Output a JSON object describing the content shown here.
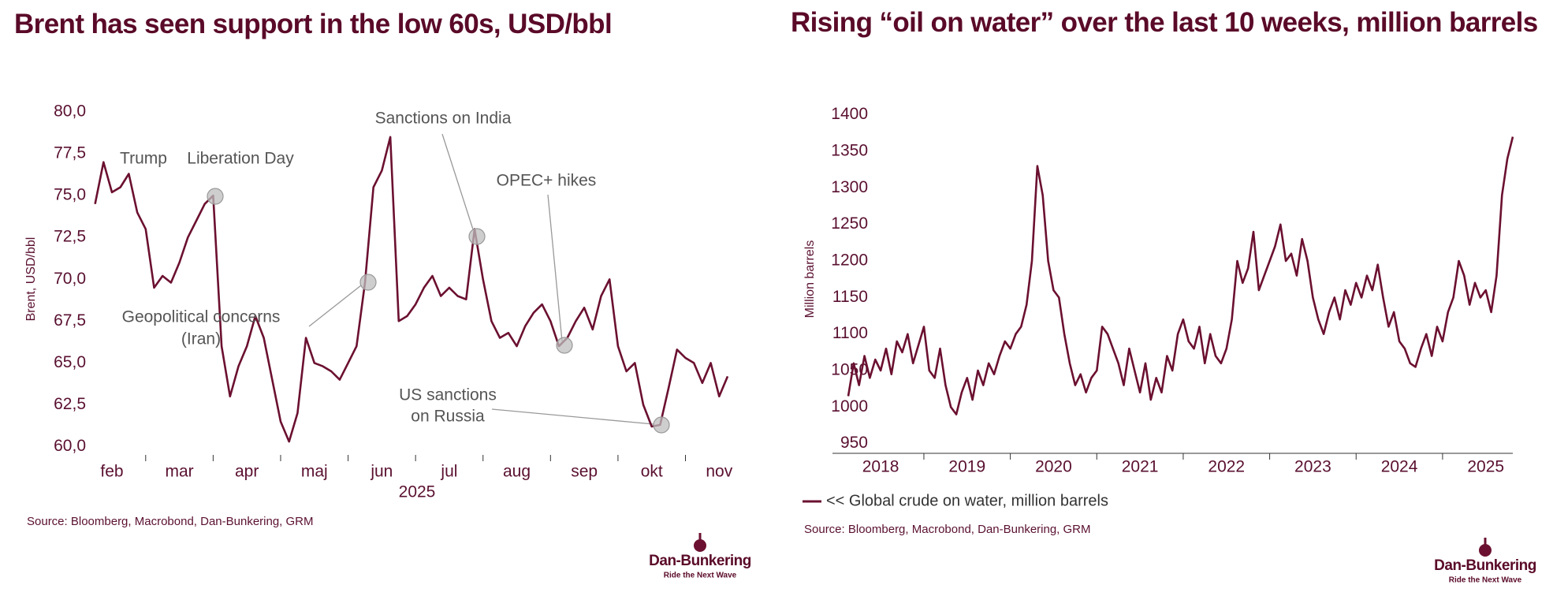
{
  "chart_data": [
    {
      "type": "line",
      "title": "Brent has seen support in the low 60s, USD/bbl",
      "ylabel": "Brent, USD/bbl",
      "xlabel": "2025",
      "categories": [
        null,
        null,
        "feb",
        null,
        null,
        null,
        null,
        null,
        null,
        null,
        "mar",
        null,
        null,
        null,
        null,
        null,
        null,
        null,
        "apr",
        null,
        null,
        null,
        null,
        null,
        null,
        null,
        "maj",
        null,
        null,
        null,
        null,
        null,
        null,
        null,
        "jun",
        null,
        null,
        null,
        null,
        null,
        null,
        null,
        "jul",
        null,
        null,
        null,
        null,
        null,
        null,
        null,
        "aug",
        null,
        null,
        null,
        null,
        null,
        null,
        null,
        "sep",
        null,
        null,
        null,
        null,
        null,
        null,
        null,
        "okt",
        null,
        null,
        null,
        null,
        null,
        null,
        null,
        "nov",
        null
      ],
      "series": [
        {
          "name": "Brent",
          "color": "#6b1030",
          "values": [
            74.5,
            77.0,
            75.2,
            75.5,
            76.3,
            74.0,
            73.0,
            69.5,
            70.2,
            69.8,
            71.0,
            72.5,
            73.5,
            74.5,
            75.0,
            66.0,
            63.0,
            64.8,
            66.0,
            67.8,
            66.5,
            64.0,
            61.5,
            60.3,
            62.0,
            66.5,
            65.0,
            64.8,
            64.5,
            64.0,
            65.0,
            66.0,
            69.8,
            75.5,
            76.5,
            78.5,
            67.5,
            67.8,
            68.5,
            69.5,
            70.2,
            69.0,
            69.5,
            69.0,
            68.8,
            73.0,
            70.0,
            67.5,
            66.5,
            66.8,
            66.0,
            67.2,
            68.0,
            68.5,
            67.5,
            66.0,
            66.5,
            67.5,
            68.3,
            67.0,
            69.0,
            70.0,
            66.0,
            64.5,
            65.0,
            62.5,
            61.2,
            61.3,
            63.5,
            65.8,
            65.3,
            65.0,
            63.8,
            65.0,
            63.0,
            64.2
          ]
        }
      ],
      "ylim": [
        60,
        80
      ],
      "yticks": [
        {
          "value": 60,
          "label": "60,0"
        },
        {
          "value": 62.5,
          "label": "62,5"
        },
        {
          "value": 65,
          "label": "65,0"
        },
        {
          "value": 67.5,
          "label": "67,5"
        },
        {
          "value": 70,
          "label": "70,0"
        },
        {
          "value": 72.5,
          "label": "72,5"
        },
        {
          "value": 75,
          "label": "75,0"
        },
        {
          "value": 77.5,
          "label": "77,5"
        },
        {
          "value": 80,
          "label": "80,0"
        }
      ],
      "grid": false,
      "annotations": [
        [
          "Trump"
        ],
        [
          "Liberation Day"
        ],
        [
          "Sanctions on India"
        ],
        [
          "OPEC+ hikes"
        ],
        [
          "Geopolitical concerns",
          "(Iran)"
        ],
        [
          "US sanctions",
          "on Russia"
        ]
      ],
      "source": "Source: Bloomberg, Macrobond, Dan-Bunkering, GRM",
      "logo": {
        "name": "Dan-Bunkering",
        "tagline": "Ride the Next Wave"
      }
    },
    {
      "type": "line",
      "title": "Rising “oil on water” over the last 10 weeks, million barrels",
      "ylabel": "Million barrels",
      "categories": [
        null,
        null,
        null,
        null,
        null,
        null,
        "2018",
        null,
        null,
        null,
        null,
        null,
        null,
        null,
        null,
        null,
        null,
        null,
        null,
        null,
        null,
        null,
        "2019",
        null,
        null,
        null,
        null,
        null,
        null,
        null,
        null,
        null,
        null,
        null,
        null,
        null,
        null,
        null,
        "2020",
        null,
        null,
        null,
        null,
        null,
        null,
        null,
        null,
        null,
        null,
        null,
        null,
        null,
        null,
        null,
        "2021",
        null,
        null,
        null,
        null,
        null,
        null,
        null,
        null,
        null,
        null,
        null,
        null,
        null,
        null,
        null,
        "2022",
        null,
        null,
        null,
        null,
        null,
        null,
        null,
        null,
        null,
        null,
        null,
        null,
        null,
        null,
        null,
        "2023",
        null,
        null,
        null,
        null,
        null,
        null,
        null,
        null,
        null,
        null,
        null,
        null,
        null,
        null,
        null,
        "2024",
        null,
        null,
        null,
        null,
        null,
        null,
        null,
        null,
        null,
        null,
        null,
        null,
        null,
        null,
        null,
        "2025",
        null,
        null,
        null,
        null,
        null
      ],
      "series": [
        {
          "name": "<< Global crude on water, million barrels",
          "color": "#6b1030",
          "values": [
            1015,
            1060,
            1030,
            1070,
            1040,
            1065,
            1050,
            1080,
            1045,
            1090,
            1075,
            1100,
            1060,
            1085,
            1110,
            1050,
            1040,
            1080,
            1030,
            1000,
            990,
            1020,
            1040,
            1010,
            1050,
            1030,
            1060,
            1045,
            1070,
            1090,
            1080,
            1100,
            1110,
            1140,
            1200,
            1330,
            1290,
            1200,
            1160,
            1150,
            1100,
            1060,
            1030,
            1045,
            1020,
            1040,
            1050,
            1110,
            1100,
            1080,
            1060,
            1030,
            1080,
            1050,
            1020,
            1060,
            1010,
            1040,
            1020,
            1070,
            1050,
            1100,
            1120,
            1090,
            1080,
            1110,
            1060,
            1100,
            1070,
            1060,
            1080,
            1120,
            1200,
            1170,
            1190,
            1240,
            1160,
            1180,
            1200,
            1220,
            1250,
            1200,
            1210,
            1180,
            1230,
            1200,
            1150,
            1120,
            1100,
            1130,
            1150,
            1120,
            1160,
            1140,
            1170,
            1150,
            1180,
            1160,
            1195,
            1150,
            1110,
            1130,
            1090,
            1080,
            1060,
            1055,
            1080,
            1100,
            1070,
            1110,
            1090,
            1130,
            1150,
            1200,
            1180,
            1140,
            1170,
            1150,
            1160,
            1130,
            1180,
            1290,
            1340,
            1370
          ]
        }
      ],
      "ylim": [
        950,
        1400
      ],
      "yticks": [
        950,
        1000,
        1050,
        1100,
        1150,
        1200,
        1250,
        1300,
        1350,
        1400
      ],
      "grid": false,
      "legend": "bottom",
      "source": "Source: Bloomberg, Macrobond, Dan-Bunkering, GRM",
      "logo": {
        "name": "Dan-Bunkering",
        "tagline": "Ride the Next Wave"
      }
    }
  ]
}
